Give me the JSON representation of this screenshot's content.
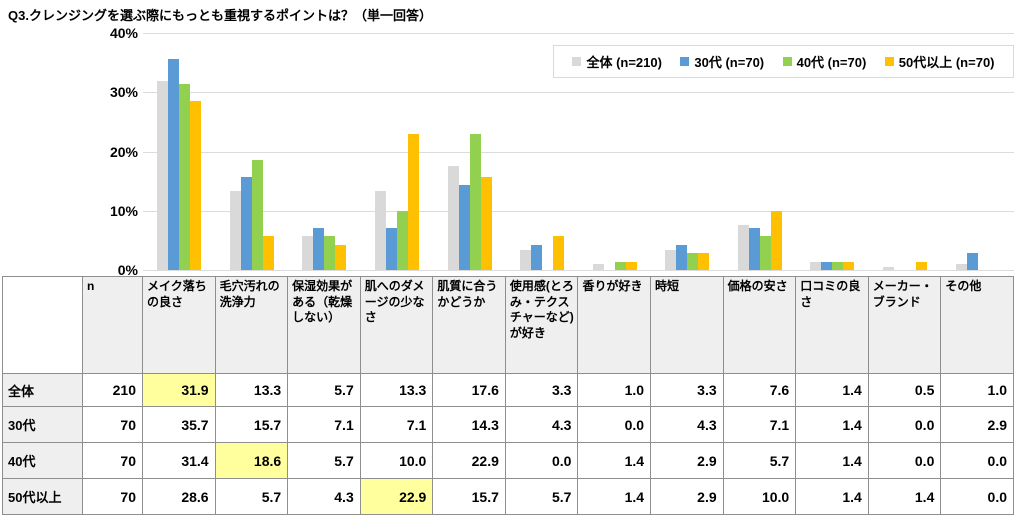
{
  "title": "Q3.クレンジングを選ぶ際にもっとも重視するポイントは？（単一回答）",
  "colors": {
    "grid": "#dcdcdc",
    "legend_border": "#d9d9d9",
    "table_border": "#8e8e8e",
    "header_bg": "#efefef",
    "highlight": "#ffff9e",
    "series_zentai": "#d9d9d9",
    "series_30s": "#5b9bd5",
    "series_40s": "#92d050",
    "series_50s": "#ffc000"
  },
  "chart_data": {
    "type": "bar",
    "title": "Q3.クレンジングを選ぶ際にもっとも重視するポイントは？（単一回答）",
    "categories": [
      "メイク落ちの良さ",
      "毛穴汚れの洗浄力",
      "保湿効果がある（乾燥しない）",
      "肌へのダメージの少なさ",
      "肌質に合うかどうか",
      "使用感(とろみ・テクスチャーなど)が好き",
      "香りが好き",
      "時短",
      "価格の安さ",
      "口コミの良さ",
      "メーカー・ブランド",
      "その他"
    ],
    "series": [
      {
        "name": "全体 (n=210)",
        "color": "#d9d9d9",
        "values": [
          31.9,
          13.3,
          5.7,
          13.3,
          17.6,
          3.3,
          1.0,
          3.3,
          7.6,
          1.4,
          0.5,
          1.0
        ]
      },
      {
        "name": "30代 (n=70)",
        "color": "#5b9bd5",
        "values": [
          35.7,
          15.7,
          7.1,
          7.1,
          14.3,
          4.3,
          0.0,
          4.3,
          7.1,
          1.4,
          0.0,
          2.9
        ]
      },
      {
        "name": "40代 (n=70)",
        "color": "#92d050",
        "values": [
          31.4,
          18.6,
          5.7,
          10.0,
          22.9,
          0.0,
          1.4,
          2.9,
          5.7,
          1.4,
          0.0,
          0.0
        ]
      },
      {
        "name": "50代以上 (n=70)",
        "color": "#ffc000",
        "values": [
          28.6,
          5.7,
          4.3,
          22.9,
          15.7,
          5.7,
          1.4,
          2.9,
          10.0,
          1.4,
          1.4,
          0.0
        ]
      }
    ],
    "xlabel": "",
    "ylabel": "",
    "ylim": [
      0,
      40
    ],
    "yticks": [
      0,
      10,
      20,
      30,
      40
    ],
    "ytick_suffix": "%",
    "grid": true,
    "legend_position": "top-right"
  },
  "table": {
    "corner_label": "",
    "n_header": "n",
    "col_headers": [
      "メイク落ちの良さ",
      "毛穴汚れの洗浄力",
      "保湿効果がある（乾燥しない）",
      "肌へのダメージの少なさ",
      "肌質に合うかどうか",
      "使用感(とろみ・テクスチャーなど)が好き",
      "香りが好き",
      "時短",
      "価格の安さ",
      "口コミの良さ",
      "メーカー・ブランド",
      "その他"
    ],
    "rows": [
      {
        "label": "全体",
        "n": "210",
        "values": [
          "31.9",
          "13.3",
          "5.7",
          "13.3",
          "17.6",
          "3.3",
          "1.0",
          "3.3",
          "7.6",
          "1.4",
          "0.5",
          "1.0"
        ],
        "highlight": 0
      },
      {
        "label": "30代",
        "n": "70",
        "values": [
          "35.7",
          "15.7",
          "7.1",
          "7.1",
          "14.3",
          "4.3",
          "0.0",
          "4.3",
          "7.1",
          "1.4",
          "0.0",
          "2.9"
        ],
        "highlight": -1
      },
      {
        "label": "40代",
        "n": "70",
        "values": [
          "31.4",
          "18.6",
          "5.7",
          "10.0",
          "22.9",
          "0.0",
          "1.4",
          "2.9",
          "5.7",
          "1.4",
          "0.0",
          "0.0"
        ],
        "highlight": 1
      },
      {
        "label": "50代以上",
        "n": "70",
        "values": [
          "28.6",
          "5.7",
          "4.3",
          "22.9",
          "15.7",
          "5.7",
          "1.4",
          "2.9",
          "10.0",
          "1.4",
          "1.4",
          "0.0"
        ],
        "highlight": 3
      }
    ]
  }
}
